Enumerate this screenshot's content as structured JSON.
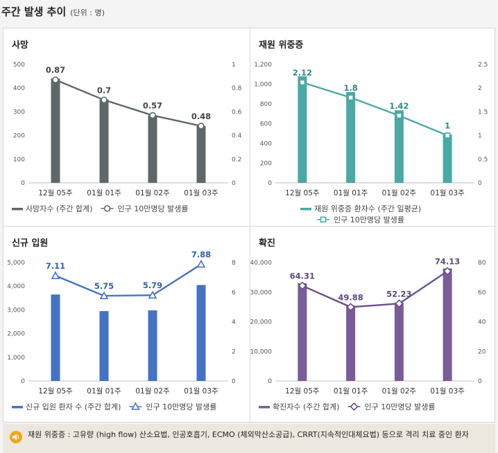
{
  "header": {
    "title": "주간 발생 추이",
    "unit": "(단위 : 명)"
  },
  "chart_data": [
    {
      "type": "bar",
      "title": "사망",
      "categories": [
        "12월 05주",
        "01월 01주",
        "01월 02주",
        "01월 03주"
      ],
      "ylim": [
        0,
        500
      ],
      "yticks": [
        "0",
        "100",
        "200",
        "300",
        "400",
        "500"
      ],
      "y2lim": [
        0,
        1
      ],
      "y2ticks": [
        "0",
        "0.2",
        "0.4",
        "0.6",
        "0.8",
        "1"
      ],
      "bar_values": [
        440,
        352,
        285,
        240
      ],
      "line_values": [
        0.87,
        0.7,
        0.57,
        0.48
      ],
      "line_labels": [
        "0.87",
        "0.7",
        "0.57",
        "0.48"
      ],
      "bar_color": "#5f6868",
      "line_color": "#5f6868",
      "label_color": "#444444",
      "marker": "circle",
      "legend": [
        {
          "label": "사망자수 (주간 합계)",
          "kind": "bar"
        },
        {
          "label": "인구 10만명당 발생률",
          "kind": "line"
        }
      ],
      "legend_layout": "single-row"
    },
    {
      "type": "bar",
      "title": "재원 위중증",
      "categories": [
        "12월 05주",
        "01월 01주",
        "01월 02주",
        "01월 03주"
      ],
      "ylim": [
        0,
        1200
      ],
      "yticks": [
        "0",
        "200",
        "400",
        "600",
        "800",
        "1,000",
        "1,200"
      ],
      "y2lim": [
        0,
        2.5
      ],
      "y2ticks": [
        "0",
        "0.5",
        "1",
        "1.5",
        "2",
        "2.5"
      ],
      "bar_values": [
        1080,
        920,
        735,
        490
      ],
      "line_values": [
        2.12,
        1.8,
        1.42,
        1
      ],
      "line_labels": [
        "2.12",
        "1.8",
        "1.42",
        "1"
      ],
      "bar_color": "#4aa9a4",
      "line_color": "#4aa9a4",
      "label_color": "#2b8c89",
      "marker": "square",
      "legend": [
        {
          "label": "재원 위중증 환자수 (주간 일평균)",
          "kind": "bar"
        },
        {
          "label": "인구 10만명당 발생률",
          "kind": "line"
        }
      ],
      "legend_layout": "two-rows"
    },
    {
      "type": "bar",
      "title": "신규 입원",
      "categories": [
        "12월 05주",
        "01월 01주",
        "01월 02주",
        "01월 03주"
      ],
      "ylim": [
        0,
        5000
      ],
      "yticks": [
        "0",
        "1,000",
        "2,000",
        "3,000",
        "4,000",
        "5,000"
      ],
      "y2lim": [
        0,
        8
      ],
      "y2ticks": [
        "0",
        "2",
        "4",
        "6",
        "8"
      ],
      "bar_values": [
        3650,
        2950,
        2980,
        4050
      ],
      "line_values": [
        7.11,
        5.75,
        5.79,
        7.88
      ],
      "line_labels": [
        "7.11",
        "5.75",
        "5.79",
        "7.88"
      ],
      "bar_color": "#4472c4",
      "line_color": "#4472c4",
      "label_color": "#2f5fb3",
      "marker": "triangle",
      "legend": [
        {
          "label": "신규 입원 환자 수 (주간 합계)",
          "kind": "bar"
        },
        {
          "label": "인구 10만명당 발생률",
          "kind": "line"
        }
      ],
      "legend_layout": "single-row"
    },
    {
      "type": "bar",
      "title": "확진",
      "categories": [
        "12월 05주",
        "01월 01주",
        "01월 02주",
        "01월 03주"
      ],
      "ylim": [
        0,
        40000
      ],
      "yticks": [
        "0",
        "10,000",
        "20,000",
        "30,000",
        "40,000"
      ],
      "y2lim": [
        0,
        80
      ],
      "y2ticks": [
        "0",
        "20",
        "40",
        "60",
        "80"
      ],
      "bar_values": [
        33000,
        25500,
        26500,
        38000
      ],
      "line_values": [
        64.31,
        49.88,
        52.23,
        74.13
      ],
      "line_labels": [
        "64.31",
        "49.88",
        "52.23",
        "74.13"
      ],
      "bar_color": "#7a5c98",
      "line_color": "#6b4f8a",
      "label_color": "#5f4a80",
      "marker": "diamond",
      "legend": [
        {
          "label": "확진자수 (주간 합계)",
          "kind": "bar"
        },
        {
          "label": "인구 10만명당 발생률",
          "kind": "line"
        }
      ],
      "legend_layout": "single-row"
    }
  ],
  "note": {
    "icon": "speaker-icon",
    "text": "재원 위중증 : 고유량 (high flow) 산소요법, 인공호흡기, ECMO (체외막산소공급), CRRT(지속적인대체요법) 등으로 격리 치료 중인 환자"
  }
}
